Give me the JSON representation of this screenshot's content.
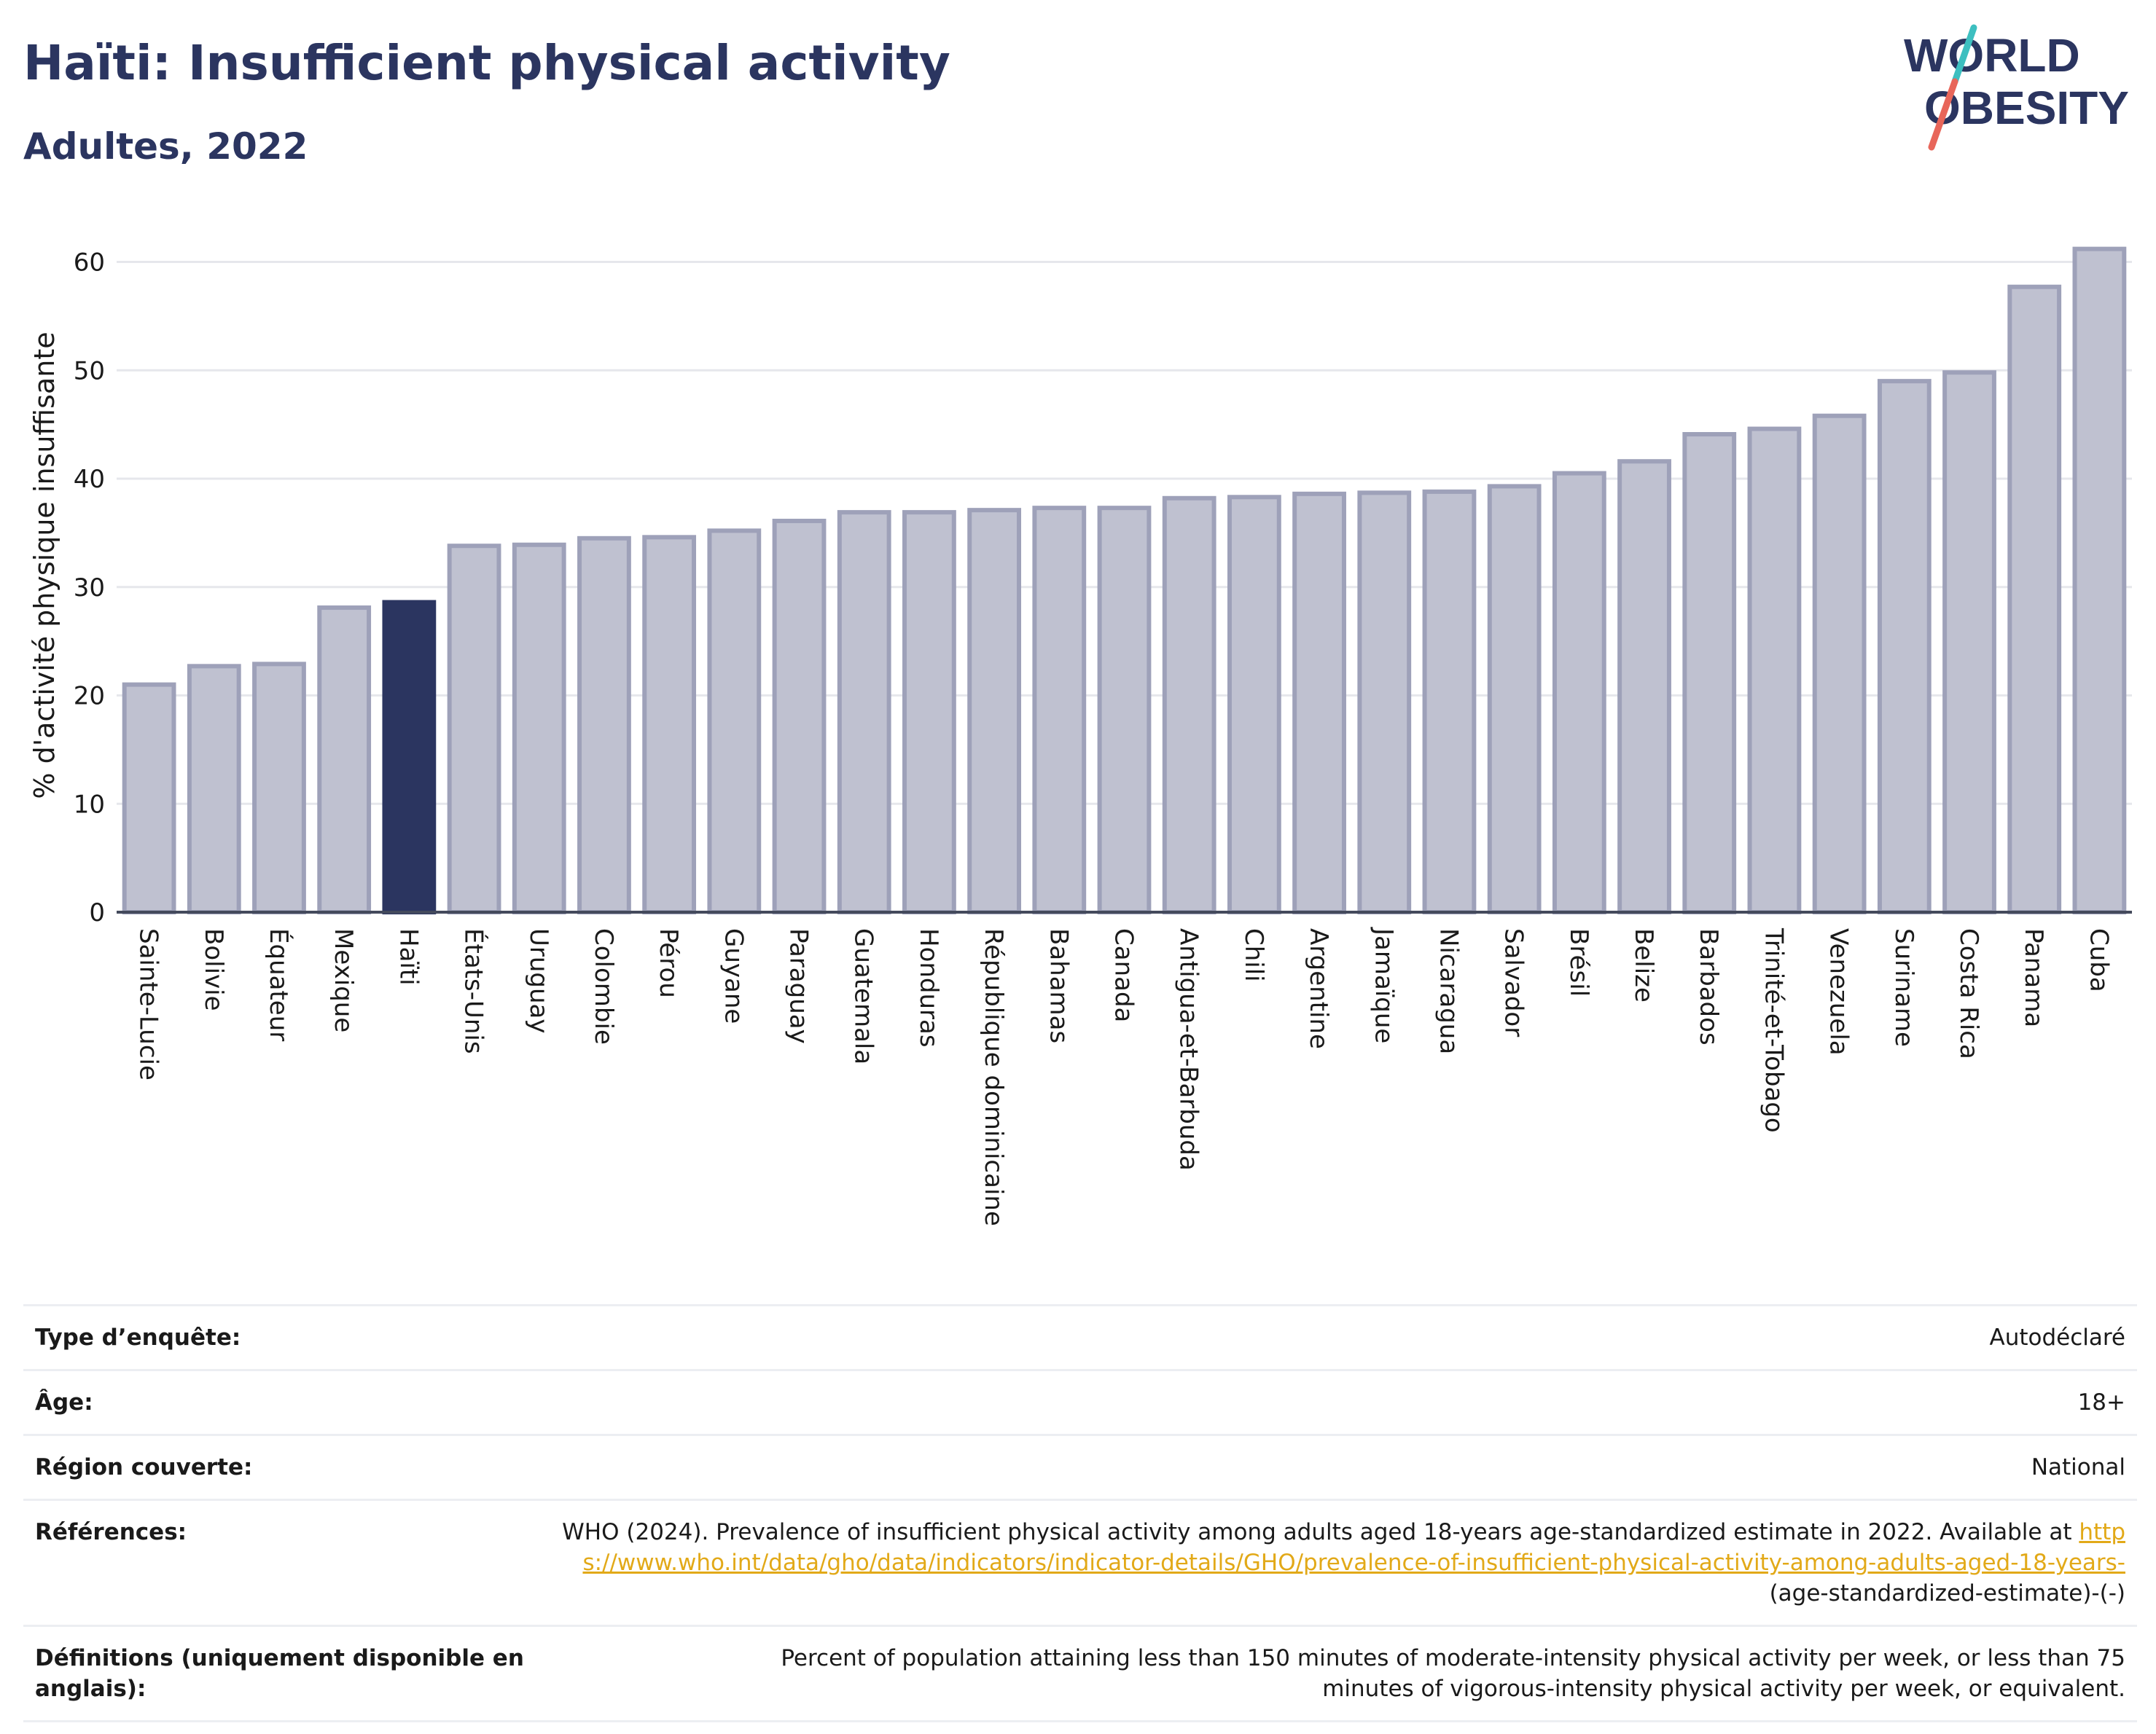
{
  "header": {
    "title": "Haïti: Insufficient physical activity",
    "subtitle": "Adultes, 2022"
  },
  "logo": {
    "line1": "WORLD",
    "line2": "OBESITY",
    "accent_colors": [
      "#3dbfc0",
      "#e8665a"
    ]
  },
  "chart_data": {
    "type": "bar",
    "title": "Haïti: Insufficient physical activity",
    "subtitle": "Adultes, 2022",
    "ylabel": "% d'activité physique insuffisante",
    "xlabel": "",
    "ylim": [
      0,
      64
    ],
    "yticks": [
      0,
      10,
      20,
      30,
      40,
      50,
      60
    ],
    "grid": true,
    "highlight": "Haïti",
    "colors": {
      "bar": "#bfc1d0",
      "bar_edge": "#9ea1b9",
      "highlight": "#2b3560"
    },
    "categories": [
      "Sainte-Lucie",
      "Bolivie",
      "Équateur",
      "Mexique",
      "Haïti",
      "États-Unis",
      "Uruguay",
      "Colombie",
      "Pérou",
      "Guyane",
      "Paraguay",
      "Guatemala",
      "Honduras",
      "République dominicaine",
      "Bahamas",
      "Canada",
      "Antigua-et-Barbuda",
      "Chili",
      "Argentine",
      "Jamaïque",
      "Nicaragua",
      "Salvador",
      "Brésil",
      "Belize",
      "Barbados",
      "Trinité-et-Tobago",
      "Venezuela",
      "Suriname",
      "Costa Rica",
      "Panama",
      "Cuba"
    ],
    "values": [
      21.0,
      22.7,
      22.9,
      28.1,
      28.6,
      33.8,
      33.9,
      34.5,
      34.6,
      35.2,
      36.1,
      36.9,
      36.9,
      37.1,
      37.3,
      37.3,
      38.2,
      38.3,
      38.6,
      38.7,
      38.8,
      39.3,
      40.5,
      41.6,
      44.1,
      44.6,
      45.8,
      49.0,
      49.8,
      57.7,
      61.2
    ]
  },
  "meta": [
    {
      "label": "Type d’enquête:",
      "value": "Autodéclaré"
    },
    {
      "label": "Âge:",
      "value": "18+"
    },
    {
      "label": "Région couverte:",
      "value": "National"
    },
    {
      "label": "Références:",
      "value": "WHO (2024). Prevalence of insufficient physical activity among adults aged 18-years age-standardized estimate in 2022. Available at",
      "link": "https://www.who.int/data/gho/data/indicators/indicator-details/GHO/prevalence-of-insufficient-physical-activity-among-adults-aged-18-years-",
      "suffix": "(age-standardized-estimate)-(-)"
    },
    {
      "label": "Définitions (uniquement disponible en anglais):",
      "value": "Percent of population attaining less than 150 minutes of moderate-intensity physical activity per week, or less than 75 minutes of vigorous-intensity physical activity per week, or equivalent."
    }
  ]
}
